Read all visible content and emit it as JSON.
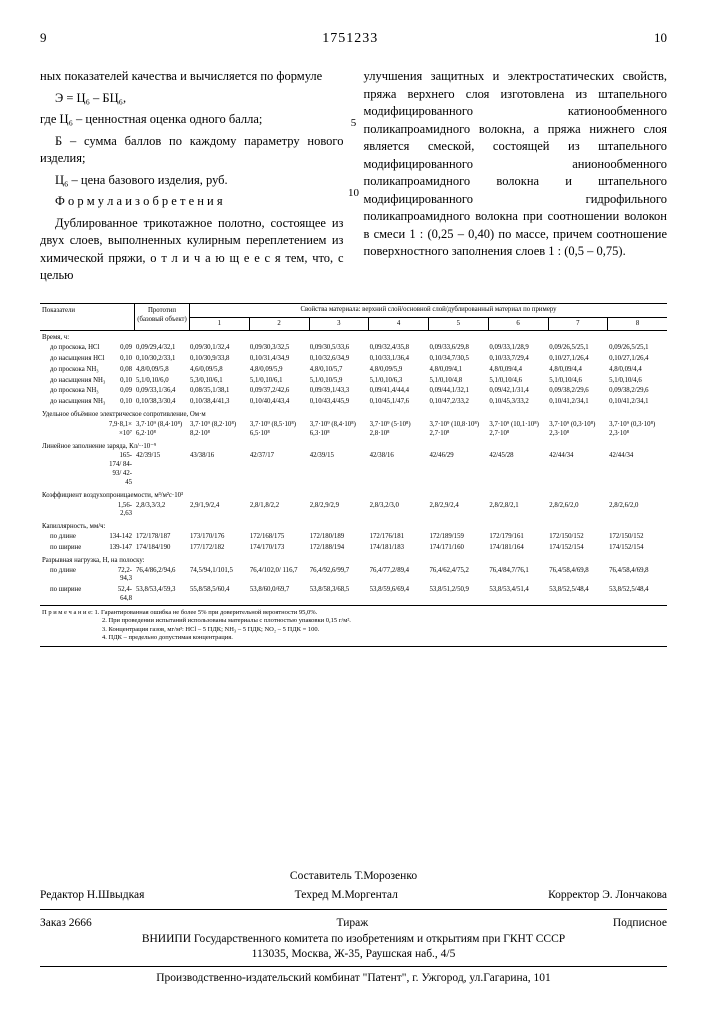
{
  "header": {
    "page_left": "9",
    "doc_number": "1751233",
    "page_right": "10"
  },
  "left_col": {
    "p1": "ных показателей качества и вычисляется по формуле",
    "formula": "Э = Ц₆ – БЦ₆,",
    "p2": "где Ц₆ – ценностная оценка одного балла;",
    "p3": "Б – сумма баллов по каждому параметру нового изделия;",
    "p4": "Ц₆ – цена базового изделия, руб.",
    "p5_title": "Ф о р м у л а  и з о б р е т е н и я",
    "p6": "Дублированное трикотажное полотно, состоящее из двух слоев, выполненных кулирным переплетением из химической пряжи, о т л и ч а ю щ е е с я тем, что, с целью"
  },
  "right_col": {
    "p1": "улучшения защитных и электростатических свойств, пряжа верхнего слоя изготовлена из штапельного модифицированного катионообменного поликапроамидного волокна, а пряжа нижнего слоя является смеской, состоящей из штапельного модифицированного анионообменного поликапроамидного волокна и штапельного модифицированного гидрофильного поликапроамидного волокна при соотношении волокон в смеси 1 : (0,25 – 0,40) по массе, причем соотношение поверхностного заполнения слоев 1 : (0,5 – 0,75)."
  },
  "margins": {
    "n5": "5",
    "n10": "10"
  },
  "table": {
    "hdr_left": "Показатели",
    "hdr_proto": "Прототип (базовый объект)",
    "hdr_span": "Свойства материала: верхний слой/основной слой/дублированный материал по примеру",
    "col_nums": [
      "1",
      "2",
      "3",
      "4",
      "5",
      "6",
      "7",
      "8"
    ],
    "sec_time": "Время, ч:",
    "rows_time": [
      {
        "label": "до проскока, HCl",
        "n": "0,09",
        "proto": "0,09/29,4/32,1",
        "c": [
          "0,09/30,1/32,4",
          "0,09/30,3/32,5",
          "0,09/30,5/33,6",
          "0,09/32,4/35,8",
          "0,09/33,6/29,8",
          "0,09/33,1/28,9",
          "0,09/26,5/25,1",
          "0,09/26,5/25,1"
        ]
      },
      {
        "label": "до насыщения HCl",
        "n": "0,10",
        "proto": "0,10/30,2/33,1",
        "c": [
          "0,10/30,9/33,8",
          "0,10/31,4/34,9",
          "0,10/32,6/34,9",
          "0,10/33,1/36,4",
          "0,10/34,7/30,5",
          "0,10/33,7/29,4",
          "0,10/27,1/26,4",
          "0,10/27,1/26,4"
        ]
      },
      {
        "label": "до проскока NH₃",
        "n": "0,08",
        "proto": "4,8/0,09/5,8",
        "c": [
          "4,6/0,09/5,8",
          "4,8/0,09/5,9",
          "4,8/0,10/5,7",
          "4,8/0,09/5,9",
          "4,8/0,09/4,1",
          "4,8/0,09/4,4",
          "4,8/0,09/4,4",
          "4,8/0,09/4,4"
        ]
      },
      {
        "label": "до насыщения NH₃",
        "n": "0,10",
        "proto": "5,1/0,10/6,0",
        "c": [
          "5,3/0,10/6,1",
          "5,1/0,10/6,1",
          "5,1/0,10/5,9",
          "5,1/0,10/6,3",
          "5,1/0,10/4,8",
          "5,1/0,10/4,6",
          "5,1/0,10/4,6",
          "5,1/0,10/4,6"
        ]
      },
      {
        "label": "до проскока NH₃",
        "n": "0,09",
        "proto": "0,09/33,1/36,4",
        "c": [
          "0,08/35,1/38,1",
          "0,09/37,2/42,6",
          "0,09/39,1/43,3",
          "0,09/41,4/44,4",
          "0,09/44,1/32,1",
          "0,09/42,1/31,4",
          "0,09/38,2/29,6",
          "0,09/38,2/29,6"
        ]
      },
      {
        "label": "до насыщения NH₃",
        "n": "0,10",
        "proto": "0,10/38,3/30,4",
        "c": [
          "0,10/38,4/41,3",
          "0,10/40,4/43,4",
          "0,10/43,4/45,9",
          "0,10/45,1/47,6",
          "0,10/47,2/33,2",
          "0,10/45,3/33,2",
          "0,10/41,2/34,1",
          "0,10/41,2/34,1"
        ]
      }
    ],
    "sec_res": "Удельное объёмное электрическое сопротивление, Ом·м",
    "row_res": {
      "label": "",
      "n": "7,9·8,1×\n×10⁷",
      "proto": "3,7·10⁹\n(8,4·10⁸)\n6,2·10⁸",
      "c": [
        "3,7·10⁹\n(8,2·10⁸)\n8,2·10⁸",
        "3,7·10⁹\n(8,5·10⁸)\n6,5·10⁸",
        "3,7·10⁹\n(8,4·10⁸)\n6,3·10⁸",
        "3,7·10⁹\n(5·10⁸)\n2,8·10⁸",
        "3,7·10⁹\n(10,8·10⁸)\n2,7·10⁸",
        "3,7·10⁹\n(10,1·10⁸)\n2,7·10⁸",
        "3,7·10⁹\n(0,3·10⁸)\n2,3·10⁸",
        "3,7·10⁹\n(0,3·10⁸)\n2,3·10⁸"
      ]
    },
    "sec_lin": "Линейное заполнение заряда, Кл/··10⁻⁹",
    "row_lin": {
      "label": "",
      "n": "165-174/\n84-93/\n42-45",
      "proto": "42/39/15",
      "c": [
        "43/38/16",
        "42/37/17",
        "42/39/15",
        "42/38/16",
        "42/46/29",
        "42/45/28",
        "42/44/34",
        "42/44/34"
      ]
    },
    "sec_air": "Коэффициент воздухопроницаемости, м³/м²с·10³",
    "row_air": {
      "label": "",
      "n": "1,56-2,63",
      "proto": "2,8/3,3/3,2",
      "c": [
        "2,9/1,9/2,4",
        "2,8/1,8/2,2",
        "2,8/2,9/2,9",
        "2,8/3,2/3,0",
        "2,8/2,9/2,4",
        "2,8/2,8/2,1",
        "2,8/2,6/2,0",
        "2,8/2,6/2,0"
      ]
    },
    "sec_cap": "Капиллярность, мм/ч:",
    "rows_cap": [
      {
        "label": "по длине",
        "n": "134-142",
        "proto": "172/178/187",
        "c": [
          "173/170/176",
          "172/168/175",
          "172/180/189",
          "172/176/181",
          "172/189/159",
          "172/179/161",
          "172/150/152",
          "172/150/152"
        ]
      },
      {
        "label": "по ширине",
        "n": "139-147",
        "proto": "174/184/190",
        "c": [
          "177/172/182",
          "174/170/173",
          "172/188/194",
          "174/181/183",
          "174/171/160",
          "174/181/164",
          "174/152/154",
          "174/152/154"
        ]
      }
    ],
    "sec_break": "Разрывная нагрузка, Н, на полоску:",
    "rows_break": [
      {
        "label": "по длине",
        "n": "72,2-\n94,3",
        "proto": "76,4/86,2/94,6",
        "c": [
          "74,5/94,1/101,5",
          "76,4/102,0/\n116,7",
          "76,4/92,6/99,7",
          "76,4/77,2/89,4",
          "76,4/62,4/75,2",
          "76,4/84,7/76,1",
          "76,4/58,4/69,8",
          "76,4/58,4/69,8"
        ]
      },
      {
        "label": "по ширине",
        "n": "52,4-\n64,8",
        "proto": "53,8/53,4/59,3",
        "c": [
          "55,8/58,5/60,4",
          "53,8/60,0/69,7",
          "53,8/58,3/68,5",
          "53,8/59,6/69,4",
          "53,8/51,2/50,9",
          "53,8/53,4/51,4",
          "53,8/52,5/48,4",
          "53,8/52,5/48,4"
        ]
      }
    ],
    "notes_label": "П р и м е ч а н и е:",
    "notes": [
      "1. Гарантированная ошибка не более 5% при доверительной вероятности 95,0%.",
      "2. При проведении испытаний использованы материалы с плотностью упаковки 0,15 г/м².",
      "3. Концентрация газов, мг/м³: HCl – 5 ПДК; NH₃ – 5 ПДК; NO₂ – 5 ПДК = 100.",
      "4. ПДК – предельно допустимая концентрация."
    ]
  },
  "footer": {
    "editor_lbl": "Редактор",
    "editor": "Н.Швыдкая",
    "compiler_lbl": "Составитель",
    "compiler": "Т.Морозенко",
    "tehred_lbl": "Техред",
    "tehred": "М.Моргентал",
    "corrector_lbl": "Корректор",
    "corrector": "Э. Лончакова",
    "order": "Заказ 2666",
    "tirazh": "Тираж",
    "sub": "Подписное",
    "org": "ВНИИПИ Государственного комитета по изобретениям и открытиям при ГКНТ СССР",
    "addr": "113035, Москва, Ж-35, Раушская наб., 4/5",
    "press": "Производственно-издательский комбинат \"Патент\", г. Ужгород, ул.Гагарина, 101"
  }
}
